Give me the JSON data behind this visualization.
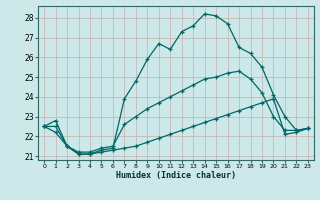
{
  "xlabel": "Humidex (Indice chaleur)",
  "bg_color": "#cce8e8",
  "grid_color": "#b0d0d0",
  "line_color": "#006666",
  "xlim": [
    -0.5,
    23.5
  ],
  "ylim": [
    20.8,
    28.6
  ],
  "yticks": [
    21,
    22,
    23,
    24,
    25,
    26,
    27,
    28
  ],
  "xticks": [
    0,
    1,
    2,
    3,
    4,
    5,
    6,
    7,
    8,
    9,
    10,
    11,
    12,
    13,
    14,
    15,
    16,
    17,
    18,
    19,
    20,
    21,
    22,
    23
  ],
  "line1_x": [
    0,
    1,
    2,
    3,
    4,
    5,
    6,
    7,
    8,
    9,
    10,
    11,
    12,
    13,
    14,
    15,
    16,
    17,
    18,
    19,
    20,
    21,
    22,
    23
  ],
  "line1_y": [
    22.5,
    22.8,
    21.5,
    21.1,
    21.1,
    21.3,
    21.4,
    23.9,
    24.8,
    25.9,
    26.7,
    26.4,
    27.3,
    27.6,
    28.2,
    28.1,
    27.7,
    26.5,
    26.2,
    25.5,
    24.1,
    23.0,
    22.3,
    22.4
  ],
  "line2_x": [
    0,
    1,
    2,
    3,
    4,
    5,
    6,
    7,
    8,
    9,
    10,
    11,
    12,
    13,
    14,
    15,
    16,
    17,
    18,
    19,
    20,
    21,
    22,
    23
  ],
  "line2_y": [
    22.5,
    22.2,
    21.5,
    21.1,
    21.1,
    21.2,
    21.3,
    21.4,
    21.5,
    21.7,
    21.9,
    22.1,
    22.3,
    22.5,
    22.7,
    22.9,
    23.1,
    23.3,
    23.5,
    23.7,
    23.9,
    22.1,
    22.2,
    22.4
  ],
  "line3_x": [
    0,
    1,
    2,
    3,
    4,
    5,
    6,
    7,
    8,
    9,
    10,
    11,
    12,
    13,
    14,
    15,
    16,
    17,
    18,
    19,
    20,
    21,
    22,
    23
  ],
  "line3_y": [
    22.5,
    22.5,
    21.5,
    21.2,
    21.2,
    21.4,
    21.5,
    22.6,
    23.0,
    23.4,
    23.7,
    24.0,
    24.3,
    24.6,
    24.9,
    25.0,
    25.2,
    25.3,
    24.9,
    24.2,
    23.0,
    22.3,
    22.3,
    22.4
  ]
}
